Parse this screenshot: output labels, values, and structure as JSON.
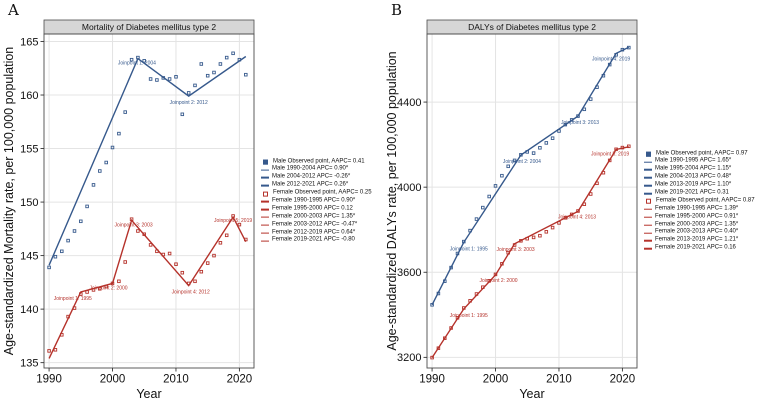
{
  "figure": {
    "background": "#ffffff",
    "strip_fill": "#d6d6d6",
    "grid_color": "#e4e4e4",
    "border_color": "#4c4c4c",
    "text_color": "#111111",
    "male_color": "#36598C",
    "female_color": "#B5322B"
  },
  "chart_data": [
    {
      "type": "line",
      "letter": "A",
      "title": "Mortality of Diabetes mellitus type 2",
      "xlabel": "Year",
      "ylabel": "Age-standardized Mortality rate, per 100,000 population",
      "xlim": [
        1989.2,
        2022.3
      ],
      "ylim": [
        134.5,
        165.7
      ],
      "xticks": [
        1990,
        2000,
        2010,
        2020
      ],
      "yticks": [
        135,
        140,
        145,
        150,
        155,
        160,
        165
      ],
      "grid": true,
      "legend_position": "right",
      "series": [
        {
          "name": "Male",
          "color": "#36598C",
          "observed": {
            "start_year": 1990,
            "values": [
              143.9,
              144.9,
              145.4,
              146.4,
              147.3,
              148.2,
              149.6,
              151.6,
              152.9,
              153.7,
              155.1,
              156.4,
              158.4,
              163.3,
              163.5,
              163.2,
              161.5,
              161.4,
              161.6,
              161.5,
              161.7,
              158.2,
              160.2,
              160.9,
              162.9,
              161.8,
              162.1,
              162.9,
              163.5,
              163.9,
              163.3,
              161.9
            ]
          },
          "fit_line": [
            [
              1990,
              144.1
            ],
            [
              2004,
              163.4
            ],
            [
              2012,
              159.9
            ],
            [
              2021,
              163.6
            ]
          ],
          "joinpoints": [
            {
              "label": "Joinpoint 1: 2004",
              "year": 2004,
              "value": 163.4,
              "dx": -1,
              "dy": 6
            },
            {
              "label": "Joinpoint 2: 2012",
              "year": 2012,
              "value": 159.9,
              "dx": 0,
              "dy": 8
            }
          ]
        },
        {
          "name": "Female",
          "color": "#B5322B",
          "observed": {
            "start_year": 1990,
            "values": [
              136.1,
              136.2,
              137.6,
              139.3,
              140.1,
              141.4,
              141.6,
              141.8,
              141.9,
              142.1,
              142.4,
              142.6,
              144.4,
              148.4,
              147.3,
              147.0,
              146.0,
              145.4,
              145.1,
              145.2,
              144.2,
              143.4,
              142.4,
              142.6,
              143.5,
              144.3,
              145.0,
              146.2,
              146.9,
              148.7,
              147.9,
              146.5
            ]
          },
          "fit_line": [
            [
              1990,
              135.4
            ],
            [
              1995,
              141.6
            ],
            [
              2000,
              142.4
            ],
            [
              2003,
              148.3
            ],
            [
              2012,
              142.2
            ],
            [
              2019,
              148.6
            ],
            [
              2021,
              146.3
            ]
          ],
          "joinpoints": [
            {
              "label": "Joinpoint 1: 1995",
              "year": 1995,
              "value": 141.6,
              "dx": -8,
              "dy": 8
            },
            {
              "label": "Joinpoint 2: 2000",
              "year": 2000,
              "value": 142.4,
              "dx": -4,
              "dy": 6
            },
            {
              "label": "Joinpoint 3: 2003",
              "year": 2003,
              "value": 148.3,
              "dx": 2,
              "dy": 6
            },
            {
              "label": "Joinpoint 4: 2012",
              "year": 2012,
              "value": 142.2,
              "dx": 2,
              "dy": 8
            },
            {
              "label": "Joinpoint 5: 2019",
              "year": 2019,
              "value": 148.6,
              "dx": 0,
              "dy": 5
            }
          ]
        }
      ],
      "legend": [
        {
          "type": "point",
          "color": "#36598C",
          "filled": true,
          "label": "Male Observed point, AAPC= 0.41"
        },
        {
          "type": "line",
          "color": "#36598C",
          "label": "Male 1990-2004 APC= 0.90*"
        },
        {
          "type": "line",
          "color": "#36598C",
          "label": "Male 2004-2012 APC= -0.26*"
        },
        {
          "type": "line",
          "color": "#36598C",
          "label": "Male 2012-2021 APC= 0.26*"
        },
        {
          "type": "point",
          "color": "#B5322B",
          "filled": false,
          "label": "Female Observed point, AAPC= 0.25"
        },
        {
          "type": "line",
          "color": "#B5322B",
          "label": "Female 1990-1995 APC= 0.90*"
        },
        {
          "type": "line",
          "color": "#B5322B",
          "label": "Female 1995-2000 APC= 0.12"
        },
        {
          "type": "line",
          "color": "#B5322B",
          "label": "Female 2000-2003 APC= 1.35*"
        },
        {
          "type": "line",
          "color": "#B5322B",
          "label": "Female 2003-2012 APC= -0.47*"
        },
        {
          "type": "line",
          "color": "#B5322B",
          "label": "Female 2012-2019 APC= 0.64*"
        },
        {
          "type": "line",
          "color": "#B5322B",
          "label": "Female 2019-2021 APC= -0.80"
        }
      ]
    },
    {
      "type": "line",
      "letter": "B",
      "title": "DALYs of Diabetes mellitus type 2",
      "xlabel": "Year",
      "ylabel": "Age-standardized DALYs rate, per 100,000 population",
      "xlim": [
        1989.2,
        2022.3
      ],
      "ylim": [
        3150,
        4720
      ],
      "xticks": [
        1990,
        2000,
        2010,
        2020
      ],
      "yticks": [
        3200,
        3600,
        4000,
        4400
      ],
      "grid": true,
      "legend_position": "right",
      "series": [
        {
          "name": "Male",
          "color": "#36598C",
          "observed": {
            "start_year": 1990,
            "values": [
              3447,
              3500,
              3558,
              3622,
              3688,
              3744,
              3796,
              3850,
              3904,
              3956,
              4006,
              4054,
              4098,
              4126,
              4152,
              4166,
              4160,
              4185,
              4208,
              4230,
              4264,
              4294,
              4316,
              4334,
              4366,
              4414,
              4470,
              4524,
              4576,
              4622,
              4646,
              4656
            ]
          },
          "fit_line": [
            [
              1990,
              3447
            ],
            [
              1995,
              3741
            ],
            [
              2004,
              4151
            ],
            [
              2013,
              4334
            ],
            [
              2019,
              4629
            ],
            [
              2021,
              4658
            ]
          ],
          "joinpoints": [
            {
              "label": "Joinpoint 1: 1995",
              "year": 1995,
              "value": 3741,
              "dx": 5,
              "dy": 8
            },
            {
              "label": "Joinpoint 2: 2004",
              "year": 2004,
              "value": 4151,
              "dx": 1,
              "dy": 8
            },
            {
              "label": "Joinpoint 3: 2013",
              "year": 2013,
              "value": 4334,
              "dx": 2,
              "dy": 8
            },
            {
              "label": "Joinpoint 4: 2019",
              "year": 2019,
              "value": 4629,
              "dx": -5,
              "dy": 7
            }
          ]
        },
        {
          "name": "Female",
          "color": "#B5322B",
          "observed": {
            "start_year": 1990,
            "values": [
              3199,
              3243,
              3290,
              3338,
              3386,
              3432,
              3466,
              3498,
              3530,
              3560,
              3590,
              3640,
              3692,
              3728,
              3748,
              3758,
              3764,
              3772,
              3790,
              3810,
              3832,
              3856,
              3872,
              3888,
              3920,
              3968,
              4018,
              4068,
              4126,
              4178,
              4186,
              4192
            ]
          },
          "fit_line": [
            [
              1990,
              3199
            ],
            [
              1995,
              3428
            ],
            [
              2000,
              3587
            ],
            [
              2003,
              3734
            ],
            [
              2013,
              3886
            ],
            [
              2019,
              4177
            ],
            [
              2021,
              4190
            ]
          ],
          "joinpoints": [
            {
              "label": "Joinpoint 1: 1995",
              "year": 1995,
              "value": 3428,
              "dx": 5,
              "dy": 8
            },
            {
              "label": "Joinpoint 2: 2000",
              "year": 2000,
              "value": 3587,
              "dx": 3,
              "dy": 7
            },
            {
              "label": "Joinpoint 3: 2003",
              "year": 2003,
              "value": 3734,
              "dx": 1,
              "dy": 7
            },
            {
              "label": "Joinpoint 4: 2013",
              "year": 2013,
              "value": 3886,
              "dx": -1,
              "dy": 7
            },
            {
              "label": "Joinpoint 5: 2019",
              "year": 2019,
              "value": 4177,
              "dx": -6,
              "dy": 6
            }
          ]
        }
      ],
      "legend": [
        {
          "type": "point",
          "color": "#36598C",
          "filled": true,
          "label": "Male Observed point, AAPC= 0.97"
        },
        {
          "type": "line",
          "color": "#36598C",
          "label": "Male 1990-1995 APC= 1.65*"
        },
        {
          "type": "line",
          "color": "#36598C",
          "label": "Male 1995-2004 APC= 1.15*"
        },
        {
          "type": "line",
          "color": "#36598C",
          "label": "Male 2004-2013 APC= 0.48*"
        },
        {
          "type": "line",
          "color": "#36598C",
          "label": "Male 2013-2019 APC= 1.10*"
        },
        {
          "type": "line",
          "color": "#36598C",
          "label": "Male 2019-2021 APC= 0.31"
        },
        {
          "type": "point",
          "color": "#B5322B",
          "filled": false,
          "label": "Female Observed point, AAPC= 0.87"
        },
        {
          "type": "line",
          "color": "#B5322B",
          "label": "Female 1990-1995 APC= 1.39*"
        },
        {
          "type": "line",
          "color": "#B5322B",
          "label": "Female 1995-2000 APC= 0.91*"
        },
        {
          "type": "line",
          "color": "#B5322B",
          "label": "Female 2000-2003 APC= 1.35*"
        },
        {
          "type": "line",
          "color": "#B5322B",
          "label": "Female 2003-2013 APC= 0.40*"
        },
        {
          "type": "line",
          "color": "#B5322B",
          "label": "Female 2013-2019 APC= 1.21*"
        },
        {
          "type": "line",
          "color": "#B5322B",
          "label": "Female 2019-2021 APC= 0.16"
        }
      ]
    }
  ]
}
